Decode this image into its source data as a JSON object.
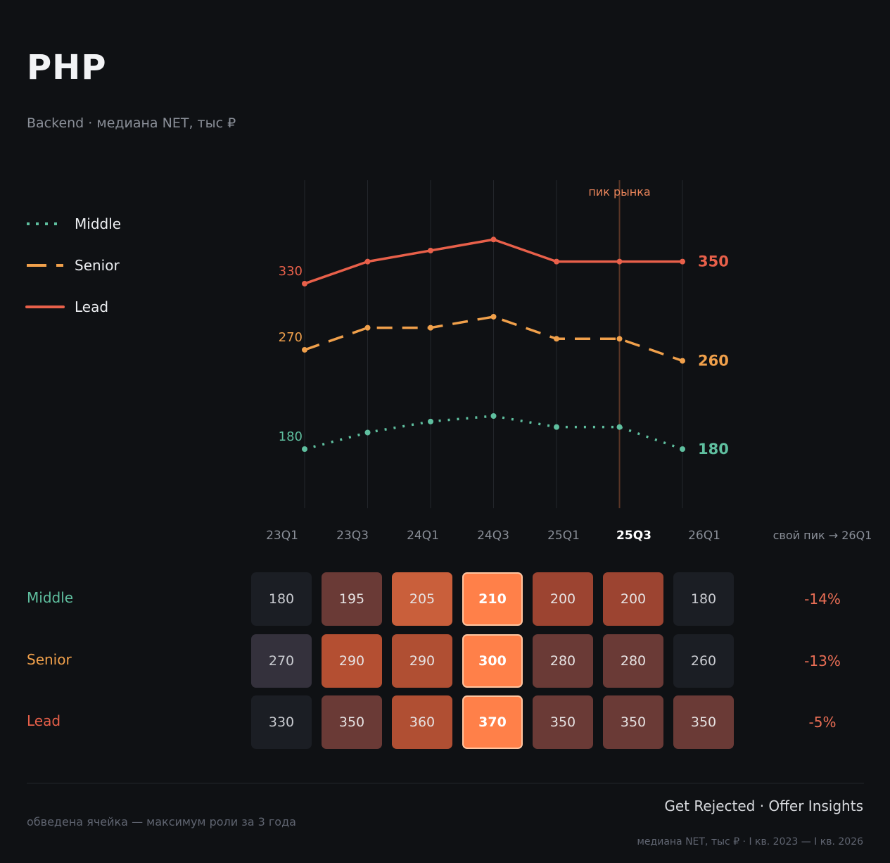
{
  "header": {
    "title": "PHP",
    "subtitle": "Backend  ·  медиана NET, тыс ₽"
  },
  "legend": [
    {
      "label": "Middle",
      "color": "#5fbf9f",
      "style": "dotted"
    },
    {
      "label": "Senior",
      "color": "#f0a04b",
      "style": "dashed"
    },
    {
      "label": "Lead",
      "color": "#e8604a",
      "style": "solid"
    }
  ],
  "chart_data": {
    "type": "line",
    "x": [
      "23Q1",
      "23Q3",
      "24Q1",
      "24Q3",
      "25Q1",
      "25Q3",
      "26Q1"
    ],
    "highlight_x": "25Q3",
    "highlight_label": "пик рынка",
    "change_header": "свой пик → 26Q1",
    "series": [
      {
        "name": "Middle",
        "color": "#5fbf9f",
        "style": "dotted",
        "values": [
          180,
          195,
          205,
          210,
          200,
          200,
          180
        ],
        "change": "-14%"
      },
      {
        "name": "Senior",
        "color": "#f0a04b",
        "style": "dashed",
        "values": [
          270,
          290,
          290,
          300,
          280,
          280,
          260
        ],
        "change": "-13%"
      },
      {
        "name": "Lead",
        "color": "#e8604a",
        "style": "solid",
        "values": [
          330,
          350,
          360,
          370,
          350,
          350,
          350
        ],
        "change": "-5%"
      }
    ],
    "heatmap_colors": [
      [
        "#1b1e24",
        "#6a3a36",
        "#c95f3b",
        "#ff8049",
        "#9c4431",
        "#9c4431",
        "#1b1e24"
      ],
      [
        "#34313c",
        "#b44f32",
        "#b04f33",
        "#ff8049",
        "#6a3a36",
        "#6a3a36",
        "#1b1e24"
      ],
      [
        "#1b1e24",
        "#6a3a36",
        "#b04f33",
        "#ff8049",
        "#6a3a36",
        "#6a3a36",
        "#6a3a36"
      ]
    ],
    "max_index": 3
  },
  "footer": {
    "note": "обведена ячейка — максимум роли за 3 года",
    "brand": "Get Rejected  ·  Offer Insights",
    "meta": "медиана NET, тыс ₽ · I кв. 2023 — I кв. 2026"
  }
}
